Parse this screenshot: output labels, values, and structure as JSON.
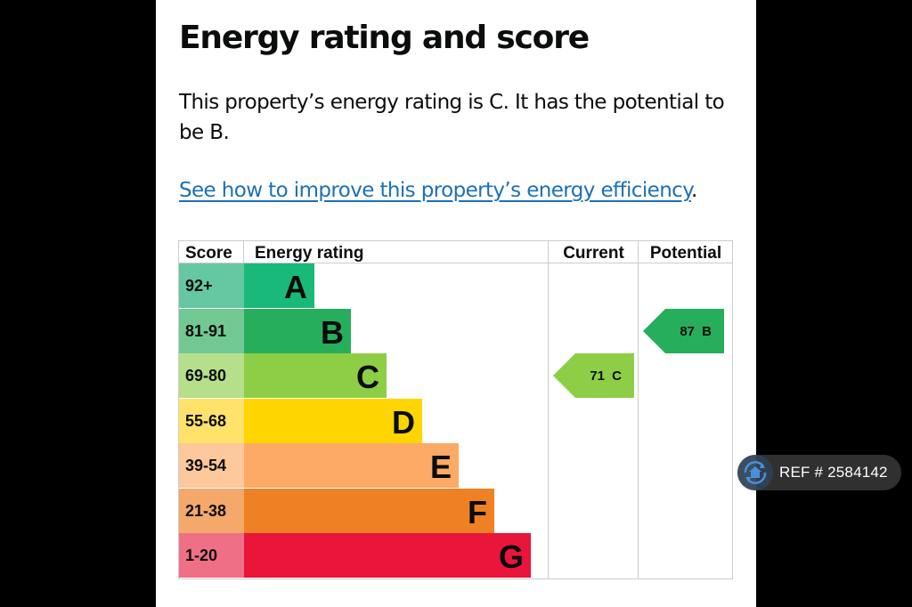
{
  "page": {
    "title": "Energy rating and score",
    "description": "This property’s energy rating is C. It has the potential to be B.",
    "link_text": "See how to improve this property’s energy efficiency",
    "link_suffix": "."
  },
  "table": {
    "headers": {
      "score": "Score",
      "rating": "Energy rating",
      "current": "Current",
      "potential": "Potential"
    },
    "bands": [
      {
        "score": "92+",
        "letter": "A",
        "color": "#19b97a",
        "score_bg": "#66c8a2"
      },
      {
        "score": "81-91",
        "letter": "B",
        "color": "#27ae5c",
        "score_bg": "#72c893"
      },
      {
        "score": "69-80",
        "letter": "C",
        "color": "#8dce46",
        "score_bg": "#b5df8a"
      },
      {
        "score": "55-68",
        "letter": "D",
        "color": "#ffd500",
        "score_bg": "#ffe26a"
      },
      {
        "score": "39-54",
        "letter": "E",
        "color": "#fcaa65",
        "score_bg": "#fdc89b"
      },
      {
        "score": "21-38",
        "letter": "F",
        "color": "#ef8023",
        "score_bg": "#f4a86a"
      },
      {
        "score": "1-20",
        "letter": "G",
        "color": "#e9153b",
        "score_bg": "#ef6f87"
      }
    ],
    "current": {
      "label": "71 C",
      "score": 71,
      "band": "C",
      "color": "#8dce46"
    },
    "potential": {
      "label": "87 B",
      "score": 87,
      "band": "B",
      "color": "#27ae5c"
    }
  },
  "chart_data": {
    "type": "bar",
    "title": "Energy rating and score",
    "categories": [
      "A",
      "B",
      "C",
      "D",
      "E",
      "F",
      "G"
    ],
    "score_ranges": [
      "92+",
      "81-91",
      "69-80",
      "55-68",
      "39-54",
      "21-38",
      "1-20"
    ],
    "colors": [
      "#19b97a",
      "#27ae5c",
      "#8dce46",
      "#ffd500",
      "#fcaa65",
      "#ef8023",
      "#e9153b"
    ],
    "series": [
      {
        "name": "Current",
        "value": 71,
        "rating": "C"
      },
      {
        "name": "Potential",
        "value": 87,
        "rating": "B"
      }
    ],
    "xlabel": "Energy rating",
    "ylabel": "Score"
  },
  "badge": {
    "ref_text": "REF # 2584142",
    "icon": "home-refresh-icon"
  }
}
